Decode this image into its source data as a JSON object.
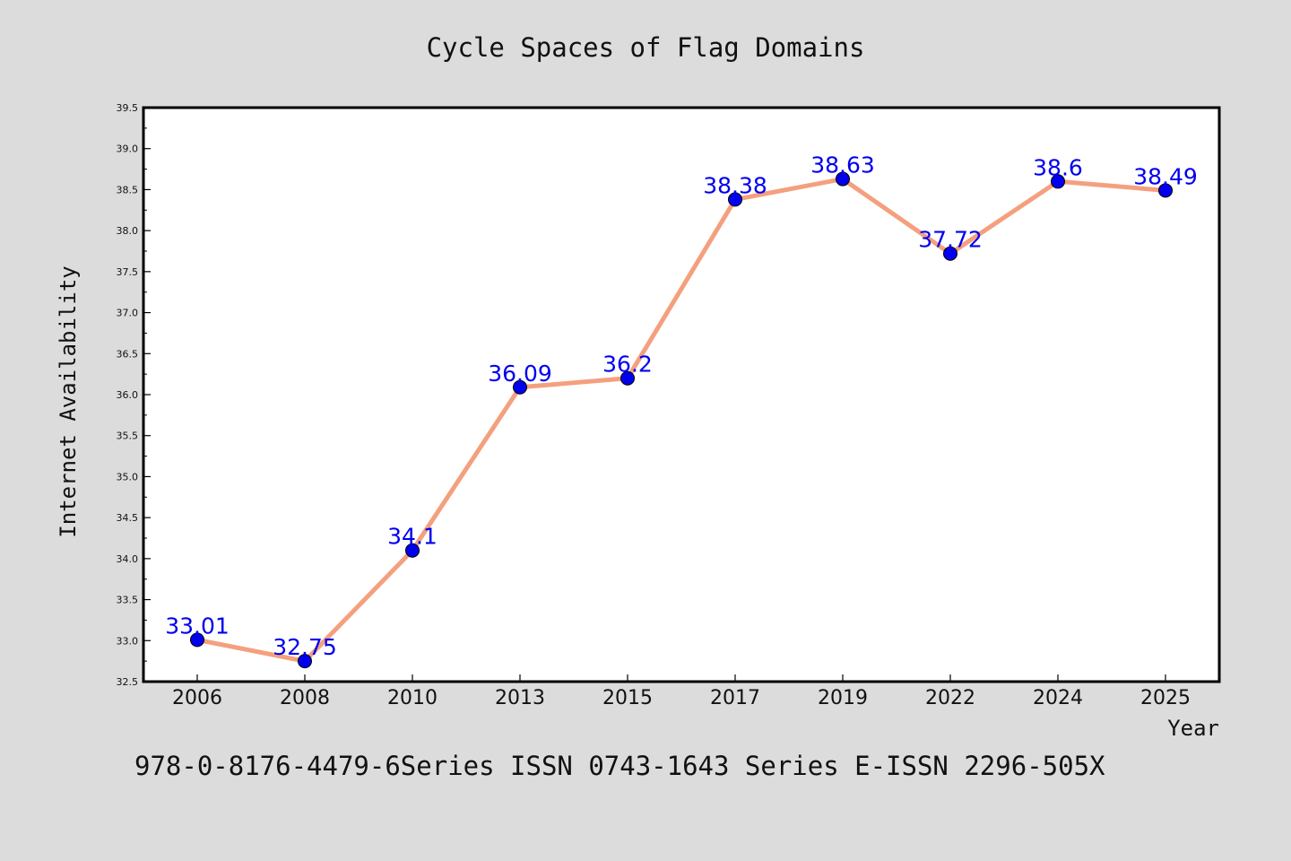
{
  "chart_data": {
    "type": "line",
    "title": "Cycle Spaces of Flag Domains",
    "xlabel": "Year",
    "ylabel": "Internet Availability",
    "categories": [
      "2006",
      "2008",
      "2010",
      "2013",
      "2015",
      "2017",
      "2019",
      "2022",
      "2024",
      "2025"
    ],
    "series": [
      {
        "values": [
          33.01,
          32.75,
          34.1,
          36.09,
          36.2,
          38.38,
          38.63,
          37.72,
          38.6,
          38.49
        ],
        "data_labels": [
          "33.01",
          "32.75",
          "34.1",
          "36.09",
          "36.2",
          "38.38",
          "38.63",
          "37.72",
          "38.6",
          "38.49"
        ],
        "line_color": "#f4a07e",
        "marker_color": "#0000ee"
      }
    ],
    "ylim": [
      32.5,
      39.5
    ],
    "yticks": [
      "32.5",
      "33.0",
      "33.5",
      "34.0",
      "34.5",
      "35.0",
      "35.5",
      "36.0",
      "36.5",
      "37.0",
      "37.5",
      "38.0",
      "38.5",
      "39.0",
      "39.5"
    ],
    "grid": false,
    "legend": "none"
  },
  "footer": "978-0-8176-4479-6Series ISSN 0743-1643 Series E-ISSN 2296-505X",
  "colors": {
    "background": "#dcdcdc",
    "plot_background": "#ffffff",
    "label_color": "#0000ee"
  }
}
